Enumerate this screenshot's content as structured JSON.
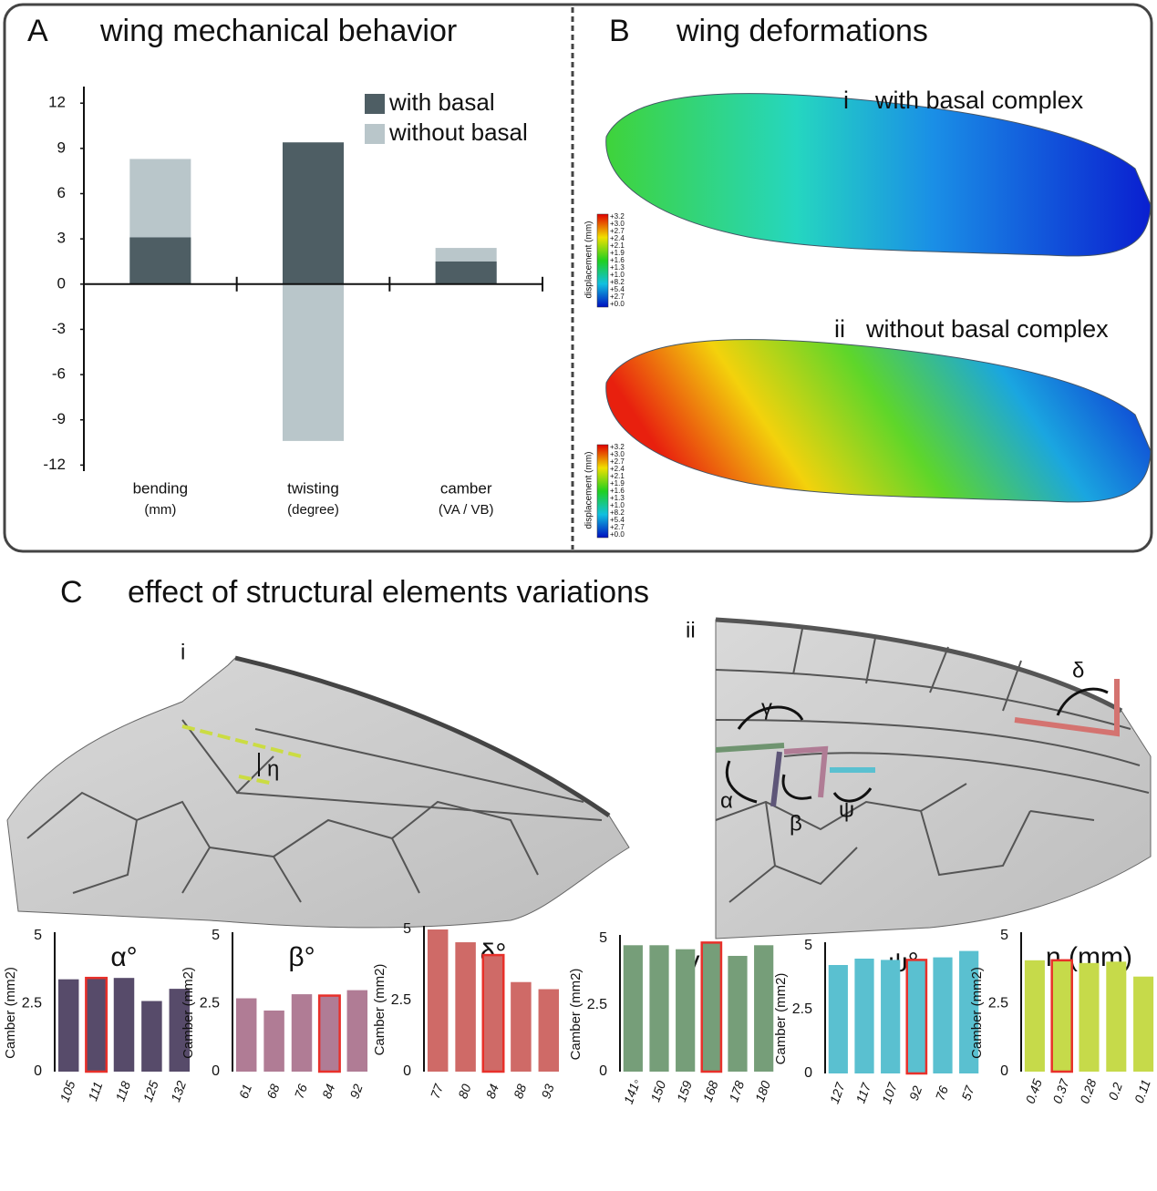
{
  "chart_data": [
    {
      "type": "bar",
      "panel_label": "A",
      "title": "wing mechanical behavior",
      "categories": [
        "bending",
        "twisting",
        "camber"
      ],
      "category_units": [
        "(mm)",
        "(degree)",
        "(VA / VB)"
      ],
      "series": [
        {
          "name": "with basal",
          "color": "#4e5e64",
          "values": [
            3.1,
            9.4,
            1.5
          ]
        },
        {
          "name": "without basal",
          "color": "#b9c6ca",
          "values": [
            8.3,
            -10.4,
            2.4
          ]
        }
      ],
      "overlap": true,
      "legend": "upper right",
      "ylim": [
        -12.4,
        13.1
      ],
      "yticks": [
        12,
        9,
        6,
        3,
        0,
        -3,
        -6,
        -9,
        -12
      ]
    },
    {
      "type": "bar",
      "title": "α°",
      "ylabel": "Camber (mm2)",
      "categories": [
        "105",
        "111",
        "118",
        "125",
        "132"
      ],
      "values": [
        3.4,
        3.45,
        3.45,
        2.6,
        3.05
      ],
      "color": "#574b6a",
      "highlight": 1,
      "highlight_color": "#e8302a",
      "ylim": [
        0,
        5
      ],
      "yticks": [
        0,
        2.5,
        5
      ]
    },
    {
      "type": "bar",
      "title": "β°",
      "ylabel": "Camber (mm2)",
      "categories": [
        "61",
        "68",
        "76",
        "84",
        "92"
      ],
      "values": [
        2.7,
        2.25,
        2.85,
        2.8,
        3.0
      ],
      "color": "#b07c95",
      "highlight": 3,
      "highlight_color": "#e8302a",
      "ylim": [
        0,
        5
      ],
      "yticks": [
        0,
        2.5,
        5
      ]
    },
    {
      "type": "bar",
      "title": "δ°",
      "ylabel": "Camber (mm2)",
      "categories": [
        "77",
        "80",
        "84",
        "88",
        "93"
      ],
      "values": [
        5.0,
        4.55,
        4.1,
        3.15,
        2.9
      ],
      "color": "#cf6a67",
      "highlight": 2,
      "highlight_color": "#e8302a",
      "ylim": [
        0,
        5
      ],
      "yticks": [
        0,
        2.5,
        5
      ]
    },
    {
      "type": "bar",
      "title": "γ°",
      "ylabel": "Camber (mm2)",
      "categories": [
        "141◦",
        "150",
        "159",
        "168",
        "178",
        "180"
      ],
      "values": [
        4.75,
        4.75,
        4.6,
        4.85,
        4.35,
        4.75
      ],
      "color": "#769e79",
      "highlight": 3,
      "highlight_color": "#e8302a",
      "ylim": [
        0,
        5
      ],
      "yticks": [
        0,
        2.5,
        5
      ]
    },
    {
      "type": "bar",
      "title": "ψ°",
      "ylabel": "Camber (mm2)",
      "categories": [
        "127",
        "117",
        "107",
        "92",
        "76",
        "57"
      ],
      "values": [
        4.25,
        4.5,
        4.45,
        4.45,
        4.55,
        4.8
      ],
      "color": "#5ac0d0",
      "highlight": 3,
      "highlight_color": "#e8302a",
      "ylim": [
        0,
        5
      ],
      "yticks": [
        0,
        2.5,
        5
      ]
    },
    {
      "type": "bar",
      "title": "η (mm)",
      "ylabel": "Camber (mm2)",
      "categories": [
        "0.45",
        "0.37",
        "0.28",
        "0.2",
        "0.11"
      ],
      "values": [
        4.1,
        4.1,
        4.0,
        4.05,
        3.5
      ],
      "color": "#c6da4a",
      "highlight": 1,
      "highlight_color": "#e8302a",
      "ylim": [
        0,
        5
      ],
      "yticks": [
        0,
        2.5,
        5
      ]
    }
  ],
  "panel_b": {
    "label": "B",
    "title": "wing deformations",
    "wings": [
      {
        "label": "i",
        "caption": "with basal complex"
      },
      {
        "label": "ii",
        "caption": "without basal complex"
      }
    ],
    "colorbar_title": "displacement (mm)",
    "colorbar_labels": [
      "+3.2",
      "+3.0",
      "+2.7",
      "+2.4",
      "+2.1",
      "+1.9",
      "+1.6",
      "+1.3",
      "+1.0",
      "+8.2",
      "+5.4",
      "+2.7",
      "+0.0"
    ]
  },
  "panel_c": {
    "label": "C",
    "title": "effect of structural elements variations",
    "sub_labels": [
      "i",
      "ii"
    ],
    "angle_labels": [
      "η",
      "γ",
      "α",
      "β",
      "ψ",
      "δ"
    ]
  }
}
